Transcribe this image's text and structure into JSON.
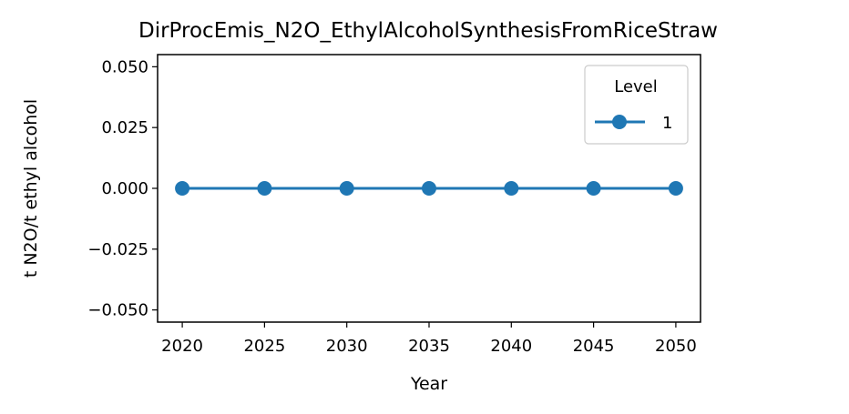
{
  "chart_data": {
    "type": "line",
    "title": "DirProcEmis_N2O_EthylAlcoholSynthesisFromRiceStraw",
    "xlabel": "Year",
    "ylabel": "t N2O/t ethyl alcohol",
    "x": [
      2020,
      2025,
      2030,
      2035,
      2040,
      2045,
      2050
    ],
    "xlim": [
      2018.5,
      2051.5
    ],
    "ylim": [
      -0.055,
      0.055
    ],
    "xticks": [
      2020,
      2025,
      2030,
      2035,
      2040,
      2045,
      2050
    ],
    "xtick_labels": [
      "2020",
      "2025",
      "2030",
      "2035",
      "2040",
      "2045",
      "2050"
    ],
    "yticks": [
      0.05,
      0.025,
      0.0,
      -0.025,
      -0.05
    ],
    "ytick_labels": [
      "0.050",
      "0.025",
      "0.000",
      "−0.025",
      "−0.050"
    ],
    "series": [
      {
        "name": "1",
        "values": [
          0,
          0,
          0,
          0,
          0,
          0,
          0
        ],
        "color": "#1f77b4",
        "marker": "circle"
      }
    ],
    "legend": {
      "title": "Level",
      "placement": "top-right"
    },
    "grid": false
  }
}
